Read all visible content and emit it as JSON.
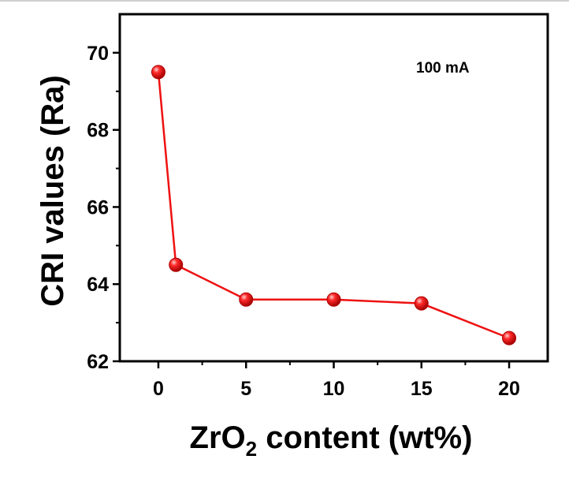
{
  "chart_data": {
    "type": "line",
    "title": "",
    "xlabel_main": "ZrO",
    "xlabel_sub": "2",
    "xlabel_rest": " content (wt%)",
    "ylabel": "CRI values (Ra)",
    "annotation": "100 mA",
    "xlim": [
      -2.2,
      22.2
    ],
    "ylim": [
      62,
      71
    ],
    "x_ticks": [
      0,
      5,
      10,
      15,
      20
    ],
    "x_tick_labels": [
      "0",
      "5",
      "10",
      "15",
      "20"
    ],
    "y_ticks": [
      62,
      64,
      66,
      68,
      70
    ],
    "y_tick_labels": [
      "62",
      "64",
      "66",
      "68",
      "70"
    ],
    "grid": false,
    "series": [
      {
        "color": "#ee1111",
        "x": [
          0,
          1,
          5,
          10,
          15,
          20
        ],
        "y": [
          69.5,
          64.5,
          63.6,
          63.6,
          63.5,
          62.6
        ]
      }
    ]
  }
}
